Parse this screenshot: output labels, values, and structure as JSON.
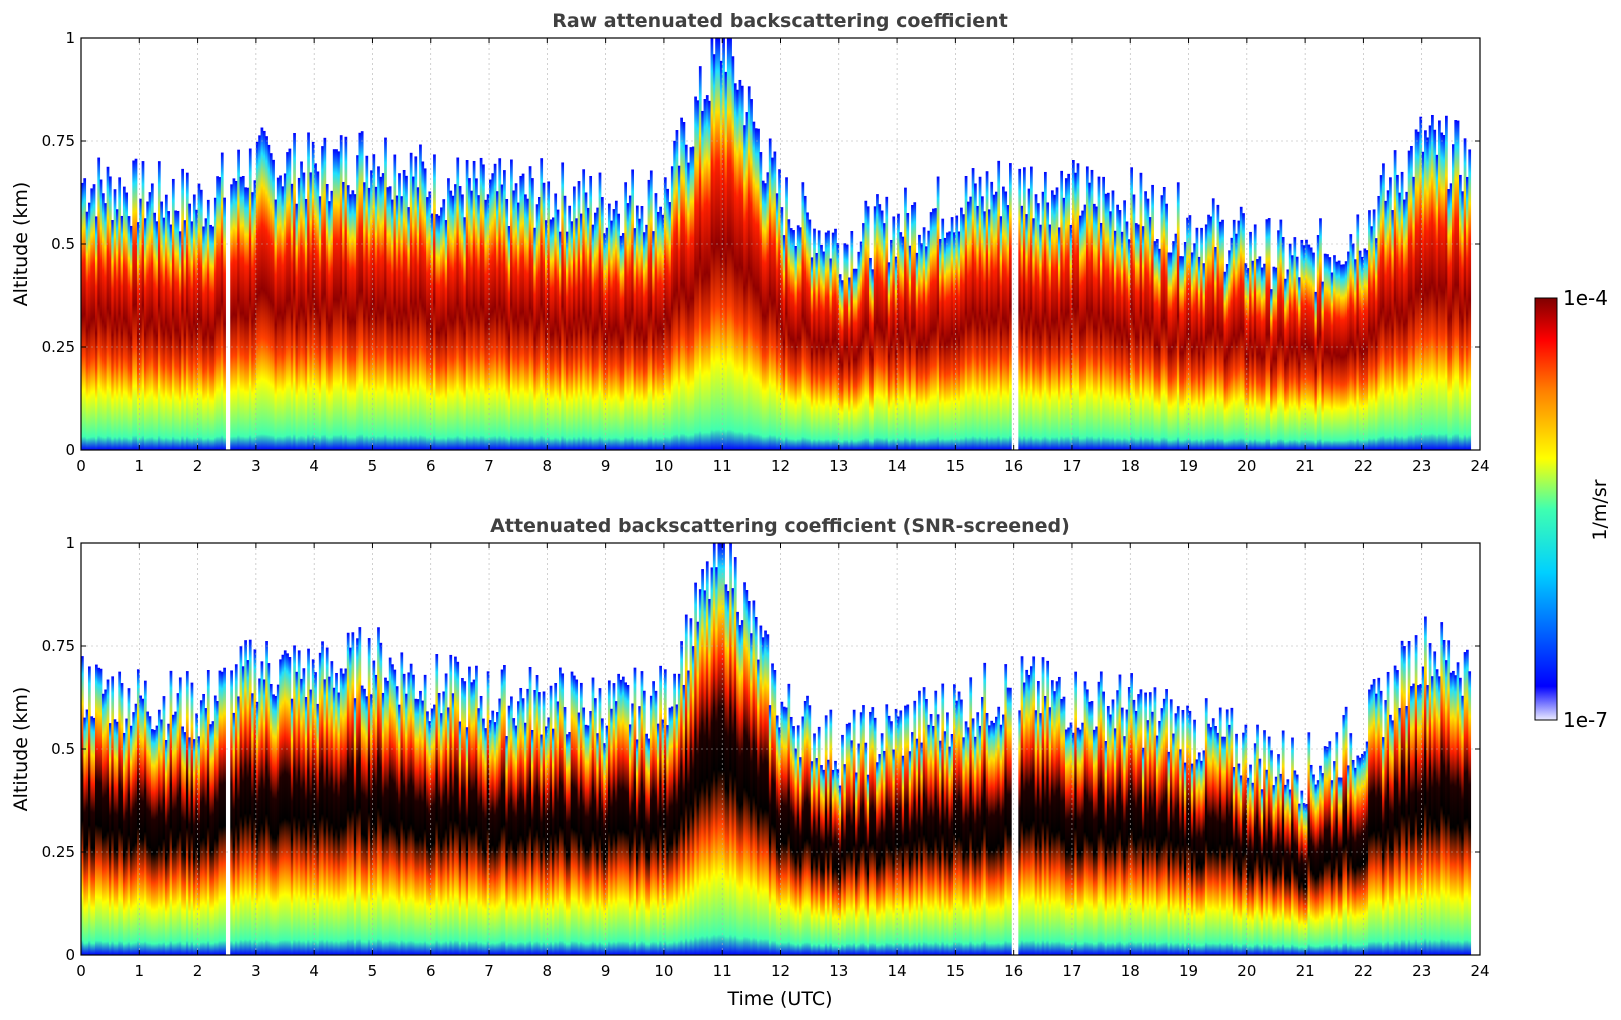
{
  "chart_data": [
    {
      "type": "heatmap",
      "title": "Raw attenuated backscattering coefficient",
      "xlabel": "",
      "ylabel": "Altitude (km)",
      "xlim": [
        0,
        24
      ],
      "ylim": [
        0,
        1
      ],
      "xticks": [
        "0",
        "1",
        "2",
        "3",
        "4",
        "5",
        "6",
        "7",
        "8",
        "9",
        "10",
        "11",
        "12",
        "13",
        "14",
        "15",
        "16",
        "17",
        "18",
        "19",
        "20",
        "21",
        "22",
        "23",
        "24"
      ],
      "yticks": [
        "0",
        "0.25",
        "0.5",
        "0.75",
        "1"
      ],
      "grid": true,
      "layer_profile": {
        "time_utc": [
          0,
          1,
          2,
          3,
          4,
          5,
          6,
          7,
          8,
          9,
          10,
          11,
          12,
          13,
          14,
          15,
          16,
          17,
          18,
          19,
          20,
          21,
          22,
          23,
          23.8
        ],
        "layer_center_km": [
          0.32,
          0.31,
          0.3,
          0.35,
          0.38,
          0.4,
          0.36,
          0.3,
          0.28,
          0.28,
          0.3,
          0.5,
          0.3,
          0.2,
          0.25,
          0.28,
          0.35,
          0.38,
          0.36,
          0.3,
          0.25,
          0.22,
          0.25,
          0.3,
          0.32
        ],
        "layer_top_km": [
          0.65,
          0.62,
          0.6,
          0.7,
          0.68,
          0.72,
          0.65,
          0.62,
          0.62,
          0.6,
          0.62,
          1.0,
          0.6,
          0.5,
          0.55,
          0.6,
          0.65,
          0.62,
          0.6,
          0.55,
          0.5,
          0.45,
          0.55,
          0.75,
          0.7
        ]
      },
      "gaps_utc": [
        [
          2.45,
          2.55
        ],
        [
          15.95,
          16.05
        ]
      ]
    },
    {
      "type": "heatmap",
      "title": "Attenuated backscattering coefficient (SNR-screened)",
      "xlabel": "Time (UTC)",
      "ylabel": "Altitude (km)",
      "xlim": [
        0,
        24
      ],
      "ylim": [
        0,
        1
      ],
      "xticks": [
        "0",
        "1",
        "2",
        "3",
        "4",
        "5",
        "6",
        "7",
        "8",
        "9",
        "10",
        "11",
        "12",
        "13",
        "14",
        "15",
        "16",
        "17",
        "18",
        "19",
        "20",
        "21",
        "22",
        "23",
        "24"
      ],
      "yticks": [
        "0",
        "0.25",
        "0.5",
        "0.75",
        "1"
      ],
      "grid": true,
      "gaps_utc": [
        [
          2.45,
          2.55
        ],
        [
          15.95,
          16.05
        ]
      ]
    }
  ],
  "colorbar": {
    "label": "1/m/sr",
    "max_label": "1e-4",
    "min_label": "1e-7",
    "colormap": [
      "#ececff",
      "#0000ff",
      "#00c8ff",
      "#40ffb0",
      "#ffff00",
      "#ff8000",
      "#ff0000",
      "#800000"
    ]
  }
}
